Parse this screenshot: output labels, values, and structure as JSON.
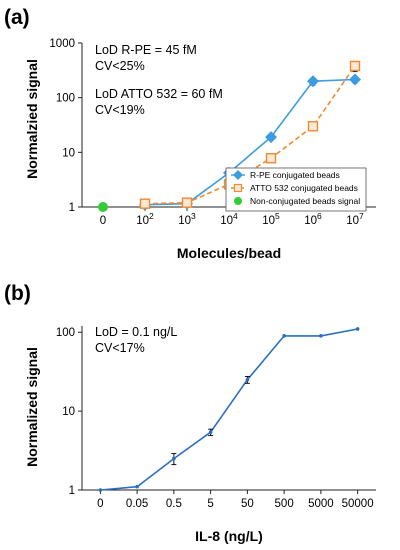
{
  "chart_data": [
    {
      "type": "line",
      "panel_label": "(a)",
      "ylabel": "Normalzied signal",
      "xlabel": "Molecules/bead",
      "y_scale": "log",
      "ylim": [
        1,
        1000
      ],
      "y_ticks": [
        "1",
        "10",
        "100",
        "1000"
      ],
      "categories": [
        "0",
        "10^2",
        "10^3",
        "10^4",
        "10^5",
        "10^6",
        "10^7"
      ],
      "x_tick_labels": [
        {
          "base": "0",
          "exp": ""
        },
        {
          "base": "10",
          "exp": "2"
        },
        {
          "base": "10",
          "exp": "3"
        },
        {
          "base": "10",
          "exp": "4"
        },
        {
          "base": "10",
          "exp": "5"
        },
        {
          "base": "10",
          "exp": "6"
        },
        {
          "base": "10",
          "exp": "7"
        }
      ],
      "annotations": [
        "LoD R-PE = 45 fM",
        "CV<25%",
        "LoD ATTO 532 = 60 fM",
        "CV<19%"
      ],
      "legend_position": "bottom-right",
      "series": [
        {
          "name": "R-PE conjugated beads",
          "color": "#3d9be0",
          "marker": "diamond",
          "line": "solid",
          "x": [
            "10^2",
            "10^3",
            "10^4",
            "10^5",
            "10^6",
            "10^7"
          ],
          "values": [
            1.1,
            1.15,
            4.2,
            19,
            200,
            215
          ],
          "errors": [
            0.08,
            0.08,
            0.3,
            1.5,
            30,
            30
          ]
        },
        {
          "name": "ATTO 532 conjugated beads",
          "color": "#f08a30",
          "marker": "open-square",
          "line": "dashed",
          "x": [
            "10^2",
            "10^3",
            "10^4",
            "10^5",
            "10^6",
            "10^7"
          ],
          "values": [
            1.15,
            1.2,
            2.6,
            7.8,
            30,
            380
          ],
          "errors": [
            0.15,
            0.12,
            0.3,
            1.0,
            5,
            80
          ]
        },
        {
          "name": "Non-conjugated beads signal",
          "color": "#33cc33",
          "marker": "circle",
          "line": "none",
          "x": [
            "0"
          ],
          "values": [
            1.0
          ],
          "errors": [
            0
          ]
        }
      ]
    },
    {
      "type": "line",
      "panel_label": "(b)",
      "ylabel": "Normalized signal",
      "xlabel": "IL-8 (ng/L)",
      "y_scale": "log",
      "ylim": [
        1,
        120
      ],
      "y_ticks": [
        "1",
        "10",
        "100"
      ],
      "categories": [
        "0",
        "0.05",
        "0.5",
        "5",
        "50",
        "500",
        "5000",
        "50000"
      ],
      "annotations": [
        "LoD = 0.1 ng/L",
        "CV<17%"
      ],
      "series": [
        {
          "color": "#2a6fc0",
          "marker": "small-dot",
          "values": [
            1.0,
            1.1,
            2.5,
            5.4,
            25,
            90,
            90,
            110
          ],
          "errors": [
            0,
            0,
            0.4,
            0.5,
            2.5,
            0,
            0,
            0
          ]
        }
      ]
    }
  ]
}
